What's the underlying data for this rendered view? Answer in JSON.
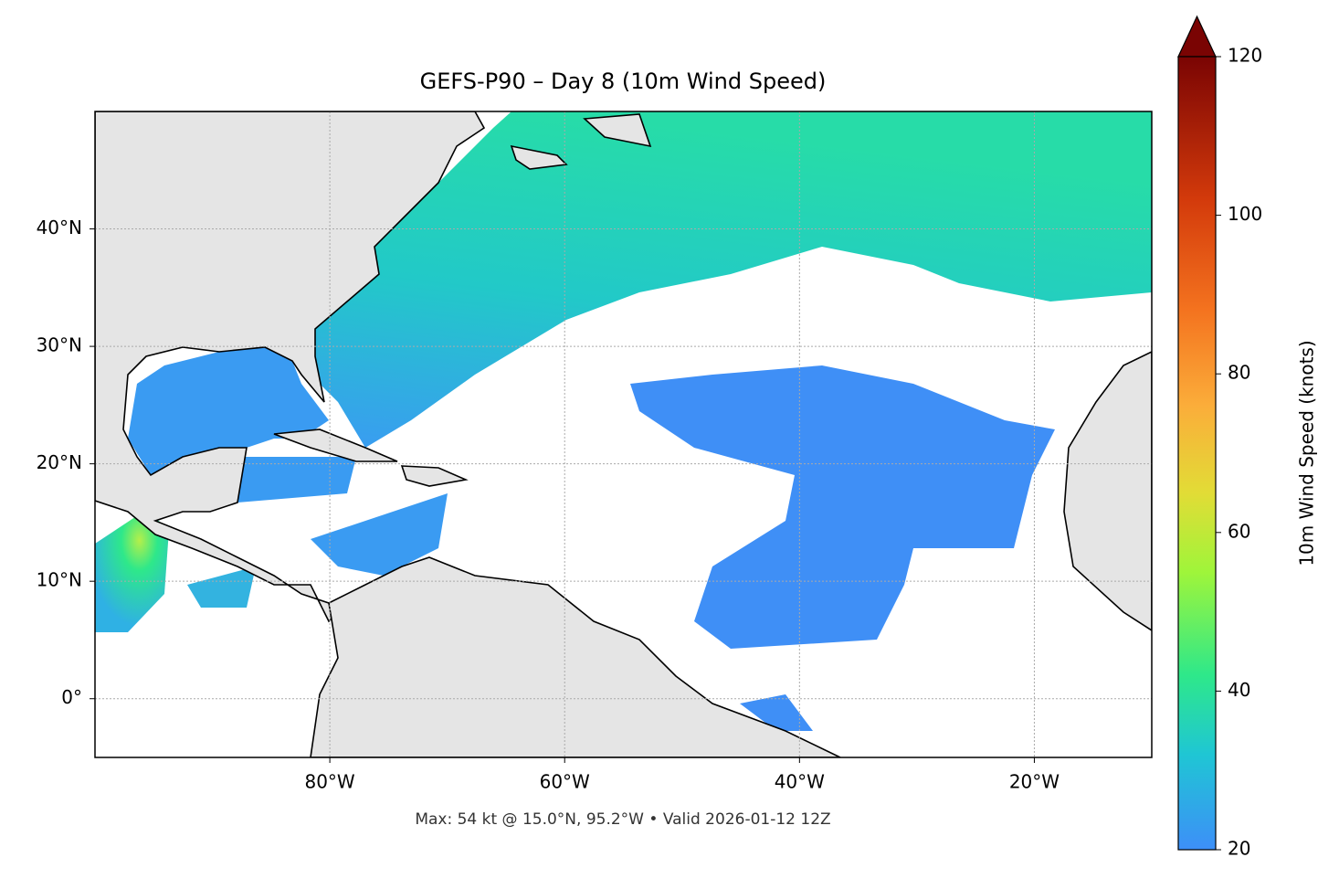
{
  "chart_data": {
    "type": "map",
    "title": "GEFS-P90 – Day 8 (10m Wind Speed)",
    "footer": "Max: 54 kt @ 15.0°N, 95.2°W • Valid 2026-01-12 12Z",
    "xlim": [
      -100,
      -10
    ],
    "ylim": [
      -5,
      50
    ],
    "xticks": [
      {
        "value": -80,
        "label": "80°W"
      },
      {
        "value": -60,
        "label": "60°W"
      },
      {
        "value": -40,
        "label": "40°W"
      },
      {
        "value": -20,
        "label": "20°W"
      }
    ],
    "yticks": [
      {
        "value": 0,
        "label": "0°"
      },
      {
        "value": 10,
        "label": "10°N"
      },
      {
        "value": 20,
        "label": "20°N"
      },
      {
        "value": 30,
        "label": "30°N"
      },
      {
        "value": 40,
        "label": "40°N"
      }
    ],
    "grid": true,
    "colorbar": {
      "label": "10m Wind Speed (knots)",
      "lim": [
        20,
        120
      ],
      "ticks": [
        20,
        40,
        60,
        80,
        100,
        120
      ]
    }
  }
}
